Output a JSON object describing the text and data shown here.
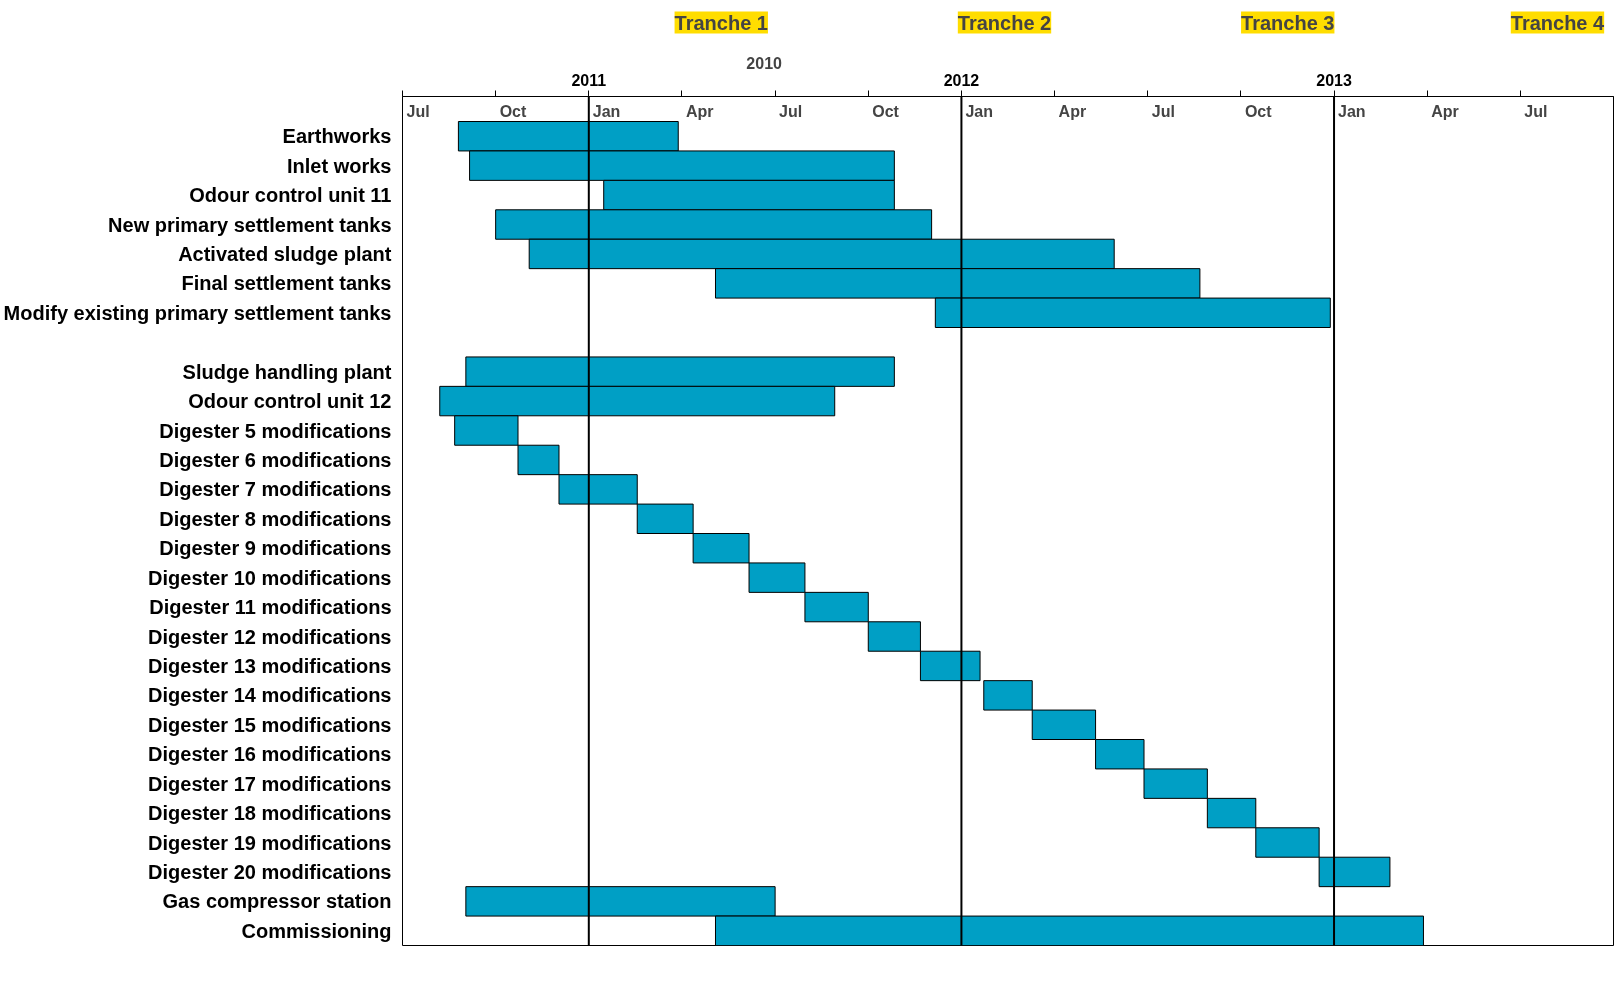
{
  "chart_data": {
    "type": "bar",
    "orientation": "horizontal",
    "color": "#009fc5",
    "categories": [
      "Earthworks",
      "Inlet works",
      "Odour control unit 11",
      "New primary settlement tanks",
      "Activated sludge plant",
      "Final settlement tanks",
      "Modify existing primary settlement tanks",
      null,
      "Sludge handling plant",
      "Odour control unit 12",
      "Digester 5 modifications",
      "Digester 6 modifications",
      "Digester 7 modifications",
      "Digester 8 modifications",
      "Digester 9 modifications",
      "Digester 10 modifications",
      "Digester 11 modifications",
      "Digester 12 modifications",
      "Digester 13 modifications",
      "Digester 14 modifications",
      "Digester 15 modifications",
      "Digester 16 modifications",
      "Digester 17 modifications",
      "Digester 18 modifications",
      "Digester 19 modifications",
      "Digester 20 modifications",
      "Gas compressor station",
      "Commissioning"
    ],
    "base": [
      2010.65,
      2010.68,
      2011.04,
      2010.75,
      2010.84,
      2011.34,
      2011.93,
      null,
      2010.67,
      2010.6,
      2010.64,
      2010.81,
      2010.92,
      2011.13,
      2011.28,
      2011.43,
      2011.58,
      2011.75,
      2011.89,
      2012.06,
      2012.19,
      2012.36,
      2012.49,
      2012.66,
      2012.79,
      2012.96,
      2010.67,
      2011.34
    ],
    "values": [
      0.59,
      1.14,
      0.78,
      1.17,
      1.57,
      1.3,
      1.06,
      null,
      1.15,
      1.06,
      0.17,
      0.11,
      0.21,
      0.15,
      0.15,
      0.15,
      0.17,
      0.14,
      0.16,
      0.13,
      0.17,
      0.13,
      0.17,
      0.13,
      0.17,
      0.19,
      0.83,
      1.9
    ],
    "xlim": [
      2010.5,
      2013.75
    ],
    "xticks": [
      {
        "value": 2010.5,
        "label": null
      },
      {
        "value": 2010.75,
        "label": null
      },
      2011,
      {
        "value": 2011.25,
        "label": null
      },
      {
        "value": 2011.5,
        "label": null
      },
      {
        "value": 2011.75,
        "label": null
      },
      2012,
      {
        "value": 2012.25,
        "label": null
      },
      {
        "value": 2012.5,
        "label": null
      },
      {
        "value": 2012.75,
        "label": null
      },
      2013,
      {
        "value": 2013.25,
        "label": null
      },
      {
        "value": 2013.5,
        "label": null
      }
    ],
    "ref_lines": [
      {
        "axis": "x",
        "value": 2011
      },
      {
        "axis": "x",
        "value": 2012
      },
      {
        "axis": "x",
        "value": 2013
      }
    ],
    "annotations": [
      "Tranche 1",
      "Tranche 2",
      "Tranche 3",
      "Tranche 4",
      "2010",
      "Jul",
      "Oct",
      "Jan",
      "Apr",
      "Jul",
      "Oct",
      "Jan",
      "Apr",
      "Jul",
      "Oct",
      "Jan",
      "Apr",
      "Jul"
    ]
  }
}
